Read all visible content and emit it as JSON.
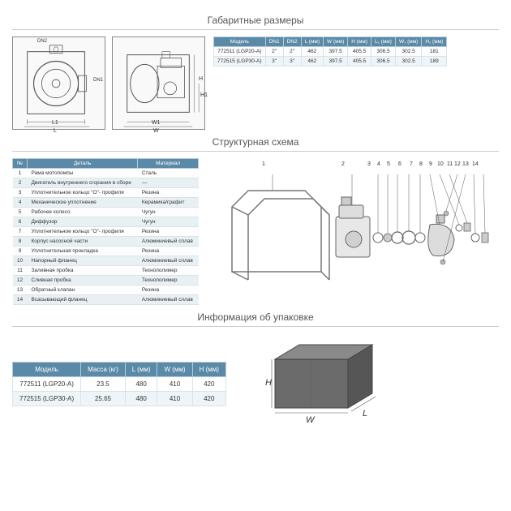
{
  "titles": {
    "dimensions": "Габаритные размеры",
    "structure": "Структурная схема",
    "packaging": "Информация об упаковке"
  },
  "dim_labels": {
    "L": "L",
    "L1": "L1",
    "W": "W",
    "W1": "W1",
    "H": "H",
    "H1": "H1",
    "DN1": "DN1",
    "DN2": "DN2"
  },
  "dim_table": {
    "headers": [
      "Модель",
      "DN1",
      "DN2",
      "L (мм)",
      "W (мм)",
      "H (мм)",
      "L₁ (мм)",
      "W₁ (мм)",
      "H₁ (мм)"
    ],
    "rows": [
      [
        "772511 (LGP20-A)",
        "2\"",
        "2\"",
        "462",
        "397.5",
        "405.5",
        "306.5",
        "302.5",
        "181"
      ],
      [
        "772515 (LGP30-A)",
        "3\"",
        "3\"",
        "462",
        "397.5",
        "405.5",
        "306.5",
        "302.5",
        "189"
      ]
    ]
  },
  "parts_table": {
    "headers": [
      "№",
      "Деталь",
      "Материал"
    ],
    "rows": [
      [
        "1",
        "Рама мотопомпы",
        "Сталь"
      ],
      [
        "2",
        "Двигатель внутреннего сгорания в сборе",
        "—"
      ],
      [
        "3",
        "Уплотнительное кольцо \"О\"- профиля",
        "Резина"
      ],
      [
        "4",
        "Механическое уплотнение",
        "Керамика/графит"
      ],
      [
        "5",
        "Рабочее колесо",
        "Чугун"
      ],
      [
        "6",
        "Диффузор",
        "Чугун"
      ],
      [
        "7",
        "Уплотнительное кольцо \"О\"- профиля",
        "Резина"
      ],
      [
        "8",
        "Корпус насосной части",
        "Алюминиевый сплав"
      ],
      [
        "9",
        "Уплотнительная прокладка",
        "Резина"
      ],
      [
        "10",
        "Напорный фланец",
        "Алюминиевый сплав"
      ],
      [
        "11",
        "Заливная пробка",
        "Технополимер"
      ],
      [
        "12",
        "Сливная пробка",
        "Технополимер"
      ],
      [
        "13",
        "Обратный клапан",
        "Резина"
      ],
      [
        "14",
        "Всасывающий фланец",
        "Алюминиевый сплав"
      ]
    ]
  },
  "pack_table": {
    "headers": [
      "Модель",
      "Масса (кг)",
      "L (мм)",
      "W (мм)",
      "H (мм)"
    ],
    "rows": [
      [
        "772511 (LGP20-A)",
        "23.5",
        "480",
        "410",
        "420"
      ],
      [
        "772515 (LGP30-A)",
        "25.65",
        "480",
        "410",
        "420"
      ]
    ]
  },
  "box_labels": {
    "H": "H",
    "W": "W",
    "L": "L"
  },
  "colors": {
    "header_bg": "#5b8aa8",
    "header_fg": "#ffffff",
    "row_odd": "#eef4f7",
    "row_even": "#fcfcfc",
    "border": "#d8e4eb",
    "line": "#666666"
  }
}
